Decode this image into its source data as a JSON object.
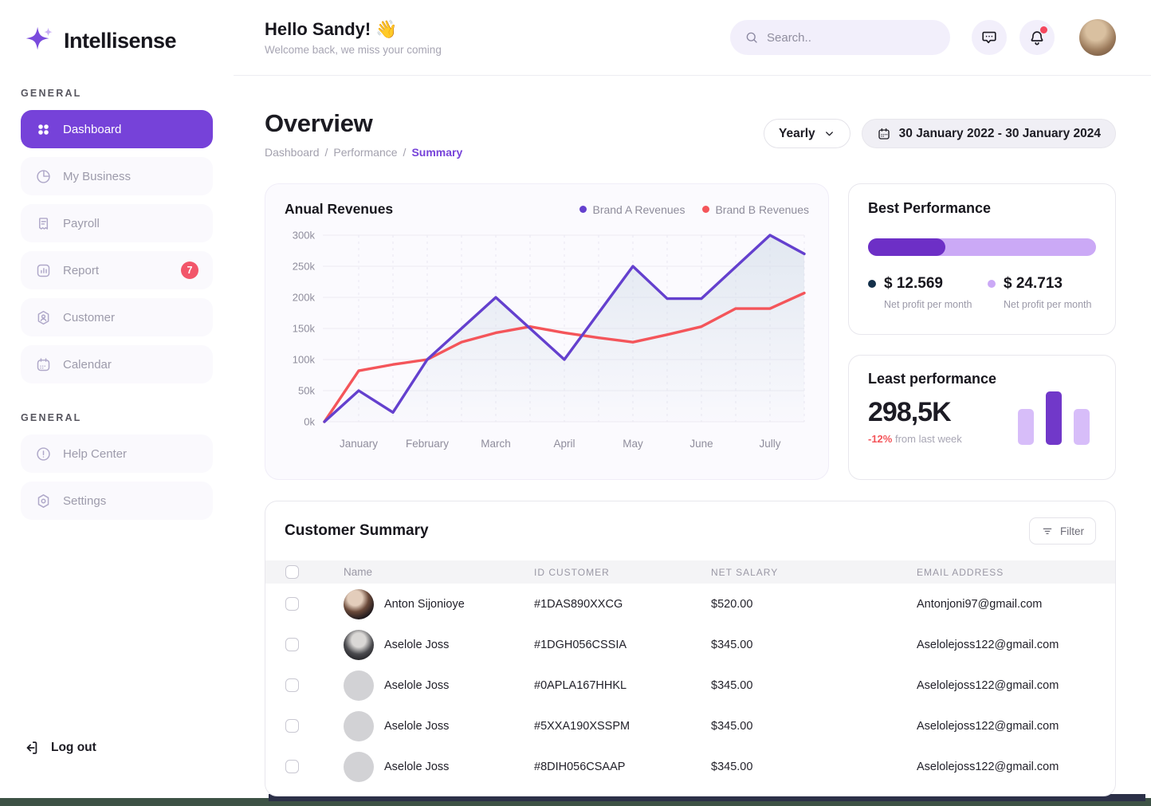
{
  "brand": {
    "name": "Intellisense"
  },
  "sidebar": {
    "section1_label": "GENERAL",
    "section2_label": "GENERAL",
    "items": [
      {
        "label": "Dashboard",
        "active": true
      },
      {
        "label": "My Business"
      },
      {
        "label": "Payroll"
      },
      {
        "label": "Report",
        "badge": "7"
      },
      {
        "label": "Customer"
      },
      {
        "label": "Calendar"
      }
    ],
    "items2": [
      {
        "label": "Help Center"
      },
      {
        "label": "Settings"
      }
    ],
    "logout_label": "Log out"
  },
  "header": {
    "greeting": "Hello Sandy!",
    "wave": "👋",
    "subtitle": "Welcome back, we miss your coming",
    "search_placeholder": "Search.."
  },
  "page": {
    "title": "Overview",
    "breadcrumb": [
      "Dashboard",
      "Performance",
      "Summary"
    ],
    "period_selector": "Yearly",
    "date_range": "30 January 2022 - 30 January 2024"
  },
  "chart_data": {
    "type": "line",
    "title": "Anual Revenues",
    "categories": [
      "January",
      "February",
      "March",
      "April",
      "May",
      "June",
      "Jully"
    ],
    "y_ticks": [
      "300k",
      "250k",
      "200k",
      "150k",
      "100k",
      "50k",
      "0k"
    ],
    "ylim": [
      0,
      300
    ],
    "unit": "thousands",
    "x_layout": "15 points; months fall on odd indices 1,3,5,7,9,11,13 with half-month points between",
    "grid": true,
    "legend_position": "top-right",
    "area_fill_series": "Brand A Revenues",
    "series": [
      {
        "name": "Brand A Revenues",
        "color": "#6440CE",
        "values": [
          0,
          50,
          15,
          100,
          150,
          200,
          150,
          100,
          175,
          250,
          198,
          198,
          249,
          300,
          270
        ]
      },
      {
        "name": "Brand B Revenues",
        "color": "#F4555A",
        "values": [
          0,
          82,
          92,
          100,
          128,
          143,
          153,
          143,
          135,
          128,
          140,
          153,
          182,
          182,
          207
        ]
      }
    ]
  },
  "best_performance": {
    "title": "Best Performance",
    "progress_pct": 34,
    "progress_colors": {
      "fill": "#6D2FC6",
      "track": "#CBA9F6"
    },
    "stats": [
      {
        "dot_color": "#14304A",
        "value": "$ 12.569",
        "label": "Net profit per month"
      },
      {
        "dot_color": "#CBA9F6",
        "value": "$ 24.713",
        "label": "Net profit per month"
      }
    ]
  },
  "least_performance": {
    "title": "Least performance",
    "value": "298,5K",
    "delta": "-12%",
    "delta_note": "from last week",
    "bars": [
      {
        "height": 45,
        "tone": "light"
      },
      {
        "height": 67,
        "tone": "dark"
      },
      {
        "height": 45,
        "tone": "light"
      }
    ]
  },
  "customer_summary": {
    "title": "Customer Summary",
    "filter_label": "Filter",
    "columns": [
      "Name",
      "ID CUSTOMER",
      "NET SALARY",
      "EMAIL ADDRESS"
    ],
    "rows": [
      {
        "name": "Anton Sijonioye",
        "id": "#1DAS890XXCG",
        "salary": "$520.00",
        "email": "Antonjoni97@gmail.com",
        "avatar": "photo-1"
      },
      {
        "name": "Aselole Joss",
        "id": "#1DGH056CSSIA",
        "salary": "$345.00",
        "email": "Aselolejoss122@gmail.com",
        "avatar": "photo-2"
      },
      {
        "name": "Aselole Joss",
        "id": "#0APLA167HHKL",
        "salary": "$345.00",
        "email": "Aselolejoss122@gmail.com",
        "avatar": "gray"
      },
      {
        "name": "Aselole Joss",
        "id": "#5XXA190XSSPM",
        "salary": "$345.00",
        "email": "Aselolejoss122@gmail.com",
        "avatar": "gray"
      },
      {
        "name": "Aselole Joss",
        "id": "#8DIH056CSAAP",
        "salary": "$345.00",
        "email": "Aselolejoss122@gmail.com",
        "avatar": "gray"
      }
    ]
  },
  "colors": {
    "accent_purple": "#7642D9",
    "badge_red": "#F2566A",
    "chart_purple": "#6440CE",
    "chart_red": "#F4555A",
    "bottom_green": "#3D5245",
    "bottom_navy": "#2C3048"
  }
}
